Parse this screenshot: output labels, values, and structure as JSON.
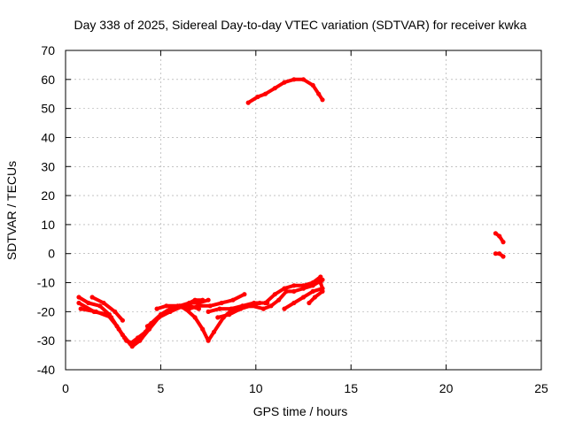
{
  "chart_data": {
    "type": "scatter",
    "title": "Day 338 of 2025, Sidereal Day-to-day VTEC variation (SDTVAR) for receiver kwka",
    "xlabel": "GPS time / hours",
    "ylabel": "SDTVAR / TECUs",
    "xlim": [
      0,
      25
    ],
    "ylim": [
      -40,
      70
    ],
    "xticks": [
      0,
      5,
      10,
      15,
      20,
      25
    ],
    "yticks": [
      -40,
      -30,
      -20,
      -10,
      0,
      10,
      20,
      30,
      40,
      50,
      60,
      70
    ],
    "grid": true,
    "colors": {
      "series": "#ff0000",
      "grid": "#a0a0a0",
      "axis": "#000000"
    },
    "series": [
      {
        "color": "#ff0000",
        "tracks": [
          [
            [
              0.7,
              -15
            ],
            [
              1.2,
              -17
            ],
            [
              1.8,
              -18
            ],
            [
              2.3,
              -21
            ],
            [
              2.8,
              -26
            ],
            [
              3.2,
              -30
            ],
            [
              3.6,
              -31
            ],
            [
              4.0,
              -29
            ],
            [
              4.5,
              -24
            ],
            [
              5.0,
              -21
            ],
            [
              5.5,
              -19
            ],
            [
              6.0,
              -18
            ],
            [
              6.5,
              -17
            ],
            [
              7.0,
              -17
            ],
            [
              7.5,
              -16
            ]
          ],
          [
            [
              0.7,
              -17
            ],
            [
              1.5,
              -20
            ],
            [
              2.2,
              -21
            ],
            [
              2.7,
              -25
            ],
            [
              3.1,
              -29
            ],
            [
              3.5,
              -32
            ],
            [
              3.9,
              -30
            ],
            [
              4.4,
              -26
            ],
            [
              4.9,
              -22
            ],
            [
              5.5,
              -20
            ],
            [
              6.2,
              -18
            ],
            [
              6.8,
              -16
            ],
            [
              7.2,
              -16
            ]
          ],
          [
            [
              0.8,
              -19
            ],
            [
              1.6,
              -20
            ],
            [
              2.4,
              -22
            ],
            [
              3.0,
              -28
            ],
            [
              3.4,
              -31
            ],
            [
              3.8,
              -29
            ],
            [
              4.2,
              -27
            ]
          ],
          [
            [
              1.4,
              -15
            ],
            [
              2.0,
              -17
            ],
            [
              2.6,
              -20
            ],
            [
              3.0,
              -23
            ]
          ],
          [
            [
              4.3,
              -25
            ],
            [
              4.9,
              -22
            ],
            [
              5.4,
              -20
            ],
            [
              6.0,
              -18
            ],
            [
              6.5,
              -18
            ],
            [
              7.0,
              -19
            ]
          ],
          [
            [
              4.8,
              -19
            ],
            [
              5.3,
              -18
            ],
            [
              5.9,
              -18
            ],
            [
              6.3,
              -19
            ],
            [
              6.8,
              -22
            ],
            [
              7.2,
              -26
            ],
            [
              7.5,
              -30
            ],
            [
              7.8,
              -27
            ],
            [
              8.3,
              -22
            ],
            [
              8.8,
              -19
            ],
            [
              9.3,
              -18
            ],
            [
              9.9,
              -17
            ],
            [
              10.5,
              -17
            ],
            [
              11.0,
              -14
            ],
            [
              11.5,
              -12
            ],
            [
              12.0,
              -11
            ],
            [
              12.5,
              -11
            ],
            [
              13.0,
              -10
            ],
            [
              13.4,
              -8
            ]
          ],
          [
            [
              6.5,
              -19
            ],
            [
              7.0,
              -18
            ],
            [
              7.6,
              -18
            ],
            [
              8.2,
              -17
            ],
            [
              8.8,
              -16
            ],
            [
              9.4,
              -14
            ]
          ],
          [
            [
              7.5,
              -20
            ],
            [
              8.1,
              -19
            ],
            [
              8.7,
              -19
            ],
            [
              9.3,
              -18
            ],
            [
              9.8,
              -18
            ],
            [
              10.4,
              -19
            ],
            [
              10.8,
              -18
            ],
            [
              11.2,
              -16
            ],
            [
              11.6,
              -13
            ],
            [
              12.0,
              -13
            ],
            [
              12.5,
              -12
            ],
            [
              13.0,
              -11
            ],
            [
              13.5,
              -9
            ]
          ],
          [
            [
              8.0,
              -22
            ],
            [
              8.6,
              -21
            ],
            [
              9.2,
              -19
            ],
            [
              9.7,
              -18
            ],
            [
              10.2,
              -17
            ],
            [
              10.6,
              -17
            ]
          ],
          [
            [
              11.5,
              -19
            ],
            [
              12.0,
              -17
            ],
            [
              12.5,
              -15
            ],
            [
              13.0,
              -13
            ],
            [
              13.5,
              -12
            ],
            [
              13.4,
              -10
            ]
          ],
          [
            [
              12.8,
              -17
            ],
            [
              13.1,
              -15
            ],
            [
              13.5,
              -13
            ]
          ],
          [
            [
              9.6,
              52
            ],
            [
              10.1,
              54
            ],
            [
              10.5,
              55
            ],
            [
              11.0,
              57
            ],
            [
              11.5,
              59
            ],
            [
              12.0,
              60
            ],
            [
              12.5,
              60
            ],
            [
              13.0,
              58
            ],
            [
              13.3,
              55
            ],
            [
              13.5,
              53
            ]
          ],
          [
            [
              22.6,
              7
            ],
            [
              22.8,
              6
            ],
            [
              23.0,
              4
            ]
          ],
          [
            [
              22.6,
              0
            ],
            [
              22.8,
              0
            ],
            [
              23.0,
              -1
            ]
          ]
        ]
      }
    ]
  }
}
